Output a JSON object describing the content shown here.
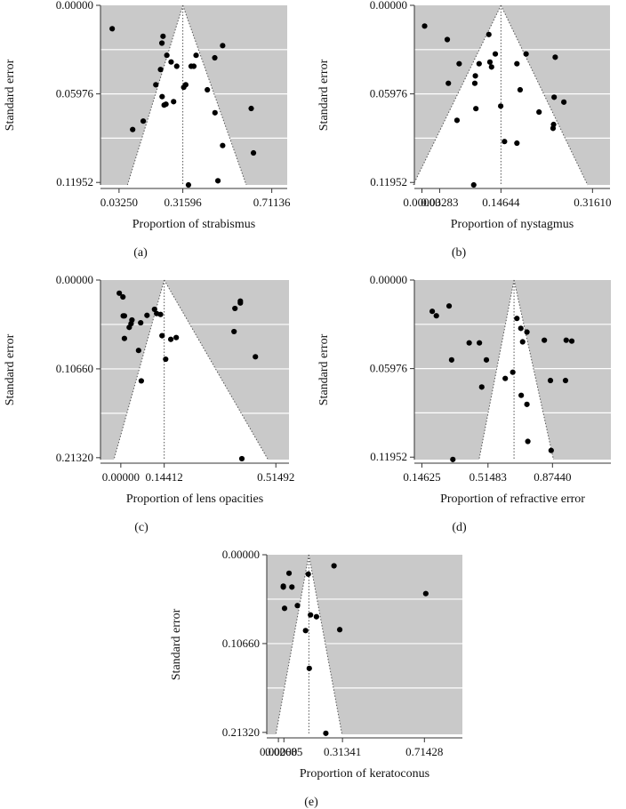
{
  "colors": {
    "background": "#c9c9c9",
    "funnel": "#ffffff",
    "grid": "#ffffff",
    "point": "#000000",
    "axis": "#333333"
  },
  "chart_data": [
    {
      "type": "scatter",
      "panel_label": "(a)",
      "title": "",
      "xlabel": "Proportion of strabismus",
      "ylabel": "Standard error",
      "x_tick_labels": [
        "0.03250",
        "0.31596",
        "0.71136"
      ],
      "y_tick_labels": [
        "0.00000",
        "0.05976",
        "0.11952"
      ],
      "x_tick_pos": [
        0.0325,
        0.31596,
        0.71136
      ],
      "y_tick_pos": [
        0.0,
        0.05976,
        0.11952
      ],
      "grid_y": [
        0.02988,
        0.05976,
        0.08964
      ],
      "xlim": [
        -0.05,
        0.78
      ],
      "ylim": [
        0.0,
        0.12119
      ],
      "pooled_x": 0.31596,
      "funnel": {
        "apex": [
          0.31596,
          0.0
        ],
        "base_left": [
          0.07,
          0.12119
        ],
        "base_right": [
          0.598,
          0.12119
        ]
      },
      "points": [
        {
          "x": 0.002,
          "y": 0.0158
        },
        {
          "x": 0.228,
          "y": 0.0209
        },
        {
          "x": 0.223,
          "y": 0.0255
        },
        {
          "x": 0.493,
          "y": 0.0272
        },
        {
          "x": 0.245,
          "y": 0.0337
        },
        {
          "x": 0.375,
          "y": 0.0337
        },
        {
          "x": 0.458,
          "y": 0.0354
        },
        {
          "x": 0.264,
          "y": 0.0382
        },
        {
          "x": 0.289,
          "y": 0.0411
        },
        {
          "x": 0.353,
          "y": 0.0411
        },
        {
          "x": 0.365,
          "y": 0.0411
        },
        {
          "x": 0.217,
          "y": 0.0433
        },
        {
          "x": 0.196,
          "y": 0.0536
        },
        {
          "x": 0.329,
          "y": 0.0536
        },
        {
          "x": 0.32,
          "y": 0.0553
        },
        {
          "x": 0.425,
          "y": 0.057
        },
        {
          "x": 0.224,
          "y": 0.0616
        },
        {
          "x": 0.233,
          "y": 0.0673
        },
        {
          "x": 0.241,
          "y": 0.0667
        },
        {
          "x": 0.275,
          "y": 0.065
        },
        {
          "x": 0.62,
          "y": 0.0696
        },
        {
          "x": 0.459,
          "y": 0.0725
        },
        {
          "x": 0.14,
          "y": 0.0781
        },
        {
          "x": 0.093,
          "y": 0.0838
        },
        {
          "x": 0.493,
          "y": 0.0946
        },
        {
          "x": 0.63,
          "y": 0.0996
        },
        {
          "x": 0.472,
          "y": 0.1184
        },
        {
          "x": 0.341,
          "y": 0.1212
        }
      ]
    },
    {
      "type": "scatter",
      "panel_label": "(b)",
      "title": "",
      "xlabel": "Proportion of nystagmus",
      "ylabel": "Standard error",
      "x_tick_labels": [
        "0.00000",
        "0.03283",
        "0.14644",
        "0.31610"
      ],
      "y_tick_labels": [
        "0.00000",
        "0.05976",
        "0.11952"
      ],
      "x_tick_pos": [
        0.0,
        0.03283,
        0.14644,
        0.3161
      ],
      "y_tick_pos": [
        0.0,
        0.05976,
        0.11952
      ],
      "grid_y": [
        0.02988,
        0.05976,
        0.08964
      ],
      "xlim": [
        -0.014,
        0.3485
      ],
      "ylim": [
        0.0,
        0.12119
      ],
      "pooled_x": 0.14644,
      "funnel": {
        "apex": [
          0.14644,
          0.0
        ],
        "base_left": [
          -0.016,
          0.12119
        ],
        "base_right": [
          0.307,
          0.12119
        ]
      },
      "points": [
        {
          "x": 0.005,
          "y": 0.014
        },
        {
          "x": 0.124,
          "y": 0.0197
        },
        {
          "x": 0.047,
          "y": 0.0231
        },
        {
          "x": 0.136,
          "y": 0.0328
        },
        {
          "x": 0.193,
          "y": 0.0328
        },
        {
          "x": 0.247,
          "y": 0.035
        },
        {
          "x": 0.126,
          "y": 0.0383
        },
        {
          "x": 0.106,
          "y": 0.0394
        },
        {
          "x": 0.069,
          "y": 0.0394
        },
        {
          "x": 0.176,
          "y": 0.0394
        },
        {
          "x": 0.129,
          "y": 0.0416
        },
        {
          "x": 0.099,
          "y": 0.0476
        },
        {
          "x": 0.049,
          "y": 0.0526
        },
        {
          "x": 0.098,
          "y": 0.0526
        },
        {
          "x": 0.182,
          "y": 0.057
        },
        {
          "x": 0.245,
          "y": 0.062
        },
        {
          "x": 0.263,
          "y": 0.0653
        },
        {
          "x": 0.1,
          "y": 0.0697
        },
        {
          "x": 0.146,
          "y": 0.068
        },
        {
          "x": 0.217,
          "y": 0.072
        },
        {
          "x": 0.065,
          "y": 0.0776
        },
        {
          "x": 0.244,
          "y": 0.0804
        },
        {
          "x": 0.243,
          "y": 0.083
        },
        {
          "x": 0.153,
          "y": 0.0919
        },
        {
          "x": 0.176,
          "y": 0.093
        },
        {
          "x": 0.096,
          "y": 0.1212
        }
      ]
    },
    {
      "type": "scatter",
      "panel_label": "(c)",
      "title": "",
      "xlabel": "Proportion of lens opacities",
      "ylabel": "Standard error",
      "x_tick_labels": [
        "0.00000",
        "0.14412",
        "0.51492"
      ],
      "y_tick_labels": [
        "0.00000",
        "0.10660",
        "0.21320"
      ],
      "x_tick_pos": [
        0.0,
        0.14412,
        0.51492
      ],
      "y_tick_pos": [
        0.0,
        0.1066,
        0.2132
      ],
      "grid_y": [
        0.0533,
        0.1066,
        0.1599
      ],
      "xlim": [
        -0.0675,
        0.5585
      ],
      "ylim": [
        0.0,
        0.21551
      ],
      "pooled_x": 0.14412,
      "funnel": {
        "apex": [
          0.14412,
          0.0
        ],
        "base_left": [
          -0.023,
          0.21551
        ],
        "base_right": [
          0.489,
          0.21551
        ]
      },
      "points": [
        {
          "x": -0.005,
          "y": 0.0158
        },
        {
          "x": 0.007,
          "y": 0.0203
        },
        {
          "x": 0.397,
          "y": 0.0253
        },
        {
          "x": 0.397,
          "y": 0.0275
        },
        {
          "x": 0.379,
          "y": 0.0341
        },
        {
          "x": 0.112,
          "y": 0.0352
        },
        {
          "x": 0.119,
          "y": 0.0402
        },
        {
          "x": 0.132,
          "y": 0.0413
        },
        {
          "x": 0.008,
          "y": 0.043
        },
        {
          "x": 0.012,
          "y": 0.043
        },
        {
          "x": 0.087,
          "y": 0.0424
        },
        {
          "x": 0.037,
          "y": 0.048
        },
        {
          "x": 0.066,
          "y": 0.0513
        },
        {
          "x": 0.034,
          "y": 0.0524
        },
        {
          "x": 0.028,
          "y": 0.0568
        },
        {
          "x": 0.376,
          "y": 0.0618
        },
        {
          "x": 0.137,
          "y": 0.0668
        },
        {
          "x": 0.184,
          "y": 0.069
        },
        {
          "x": 0.166,
          "y": 0.0712
        },
        {
          "x": 0.012,
          "y": 0.0701
        },
        {
          "x": 0.059,
          "y": 0.0845
        },
        {
          "x": 0.149,
          "y": 0.095
        },
        {
          "x": 0.447,
          "y": 0.0921
        },
        {
          "x": 0.068,
          "y": 0.121
        },
        {
          "x": 0.402,
          "y": 0.2144
        }
      ]
    },
    {
      "type": "scatter",
      "panel_label": "(d)",
      "title": "",
      "xlabel": "Proportion of refractive error",
      "ylabel": "Standard error",
      "x_tick_labels": [
        "0.14625",
        "0.51483",
        "0.87440"
      ],
      "y_tick_labels": [
        "0.00000",
        "0.05976",
        "0.11952"
      ],
      "x_tick_pos": [
        0.14625,
        0.51483,
        0.8744
      ],
      "y_tick_pos": [
        0.0,
        0.05976,
        0.11952
      ],
      "grid_y": [
        0.02988,
        0.05976,
        0.08964
      ],
      "xlim": [
        0.1044,
        1.2
      ],
      "ylim": [
        0.0,
        0.12119
      ],
      "pooled_x": 0.66,
      "funnel": {
        "apex": [
          0.66,
          0.0
        ],
        "base_left": [
          0.465,
          0.12119
        ],
        "base_right": [
          0.88,
          0.12119
        ]
      },
      "points": [
        {
          "x": 0.204,
          "y": 0.0211
        },
        {
          "x": 0.298,
          "y": 0.0175
        },
        {
          "x": 0.227,
          "y": 0.0241
        },
        {
          "x": 0.676,
          "y": 0.0259
        },
        {
          "x": 0.698,
          "y": 0.0326
        },
        {
          "x": 0.732,
          "y": 0.0351
        },
        {
          "x": 0.829,
          "y": 0.0406
        },
        {
          "x": 0.951,
          "y": 0.0406
        },
        {
          "x": 0.708,
          "y": 0.0417
        },
        {
          "x": 0.41,
          "y": 0.0424
        },
        {
          "x": 0.467,
          "y": 0.0424
        },
        {
          "x": 0.982,
          "y": 0.0412
        },
        {
          "x": 0.312,
          "y": 0.0539
        },
        {
          "x": 0.506,
          "y": 0.0539
        },
        {
          "x": 0.653,
          "y": 0.0622
        },
        {
          "x": 0.611,
          "y": 0.0664
        },
        {
          "x": 0.863,
          "y": 0.0678
        },
        {
          "x": 0.947,
          "y": 0.0678
        },
        {
          "x": 0.48,
          "y": 0.0722
        },
        {
          "x": 0.7,
          "y": 0.0778
        },
        {
          "x": 0.732,
          "y": 0.0839
        },
        {
          "x": 0.737,
          "y": 0.1089
        },
        {
          "x": 0.867,
          "y": 0.115
        },
        {
          "x": 0.319,
          "y": 0.1211
        }
      ]
    },
    {
      "type": "scatter",
      "panel_label": "(e)",
      "title": "",
      "xlabel": "Proportion of keratoconus",
      "ylabel": "Standard error",
      "x_tick_labels": [
        "0.00000",
        "0.02685",
        "0.31341",
        "0.71428"
      ],
      "y_tick_labels": [
        "0.00000",
        "0.10660",
        "0.21320"
      ],
      "x_tick_pos": [
        0.0,
        0.02685,
        0.31341,
        0.71428
      ],
      "y_tick_pos": [
        0.0,
        0.1066,
        0.2132
      ],
      "grid_y": [
        0.0533,
        0.1066,
        0.1599
      ],
      "xlim": [
        -0.057,
        0.9
      ],
      "ylim": [
        0.0,
        0.21551
      ],
      "pooled_x": 0.149,
      "funnel": {
        "apex": [
          0.149,
          0.0
        ],
        "base_left": [
          -0.0125,
          0.21551
        ],
        "base_right": [
          0.311,
          0.21551
        ]
      },
      "points": [
        {
          "x": 0.272,
          "y": 0.0133
        },
        {
          "x": 0.052,
          "y": 0.0222
        },
        {
          "x": 0.146,
          "y": 0.0233
        },
        {
          "x": 0.024,
          "y": 0.0377
        },
        {
          "x": 0.024,
          "y": 0.0388
        },
        {
          "x": 0.066,
          "y": 0.0388
        },
        {
          "x": 0.721,
          "y": 0.0466
        },
        {
          "x": 0.093,
          "y": 0.061
        },
        {
          "x": 0.03,
          "y": 0.0643
        },
        {
          "x": 0.157,
          "y": 0.0722
        },
        {
          "x": 0.186,
          "y": 0.0744
        },
        {
          "x": 0.133,
          "y": 0.091
        },
        {
          "x": 0.3,
          "y": 0.0899
        },
        {
          "x": 0.151,
          "y": 0.1364
        },
        {
          "x": 0.232,
          "y": 0.2143
        }
      ]
    }
  ]
}
